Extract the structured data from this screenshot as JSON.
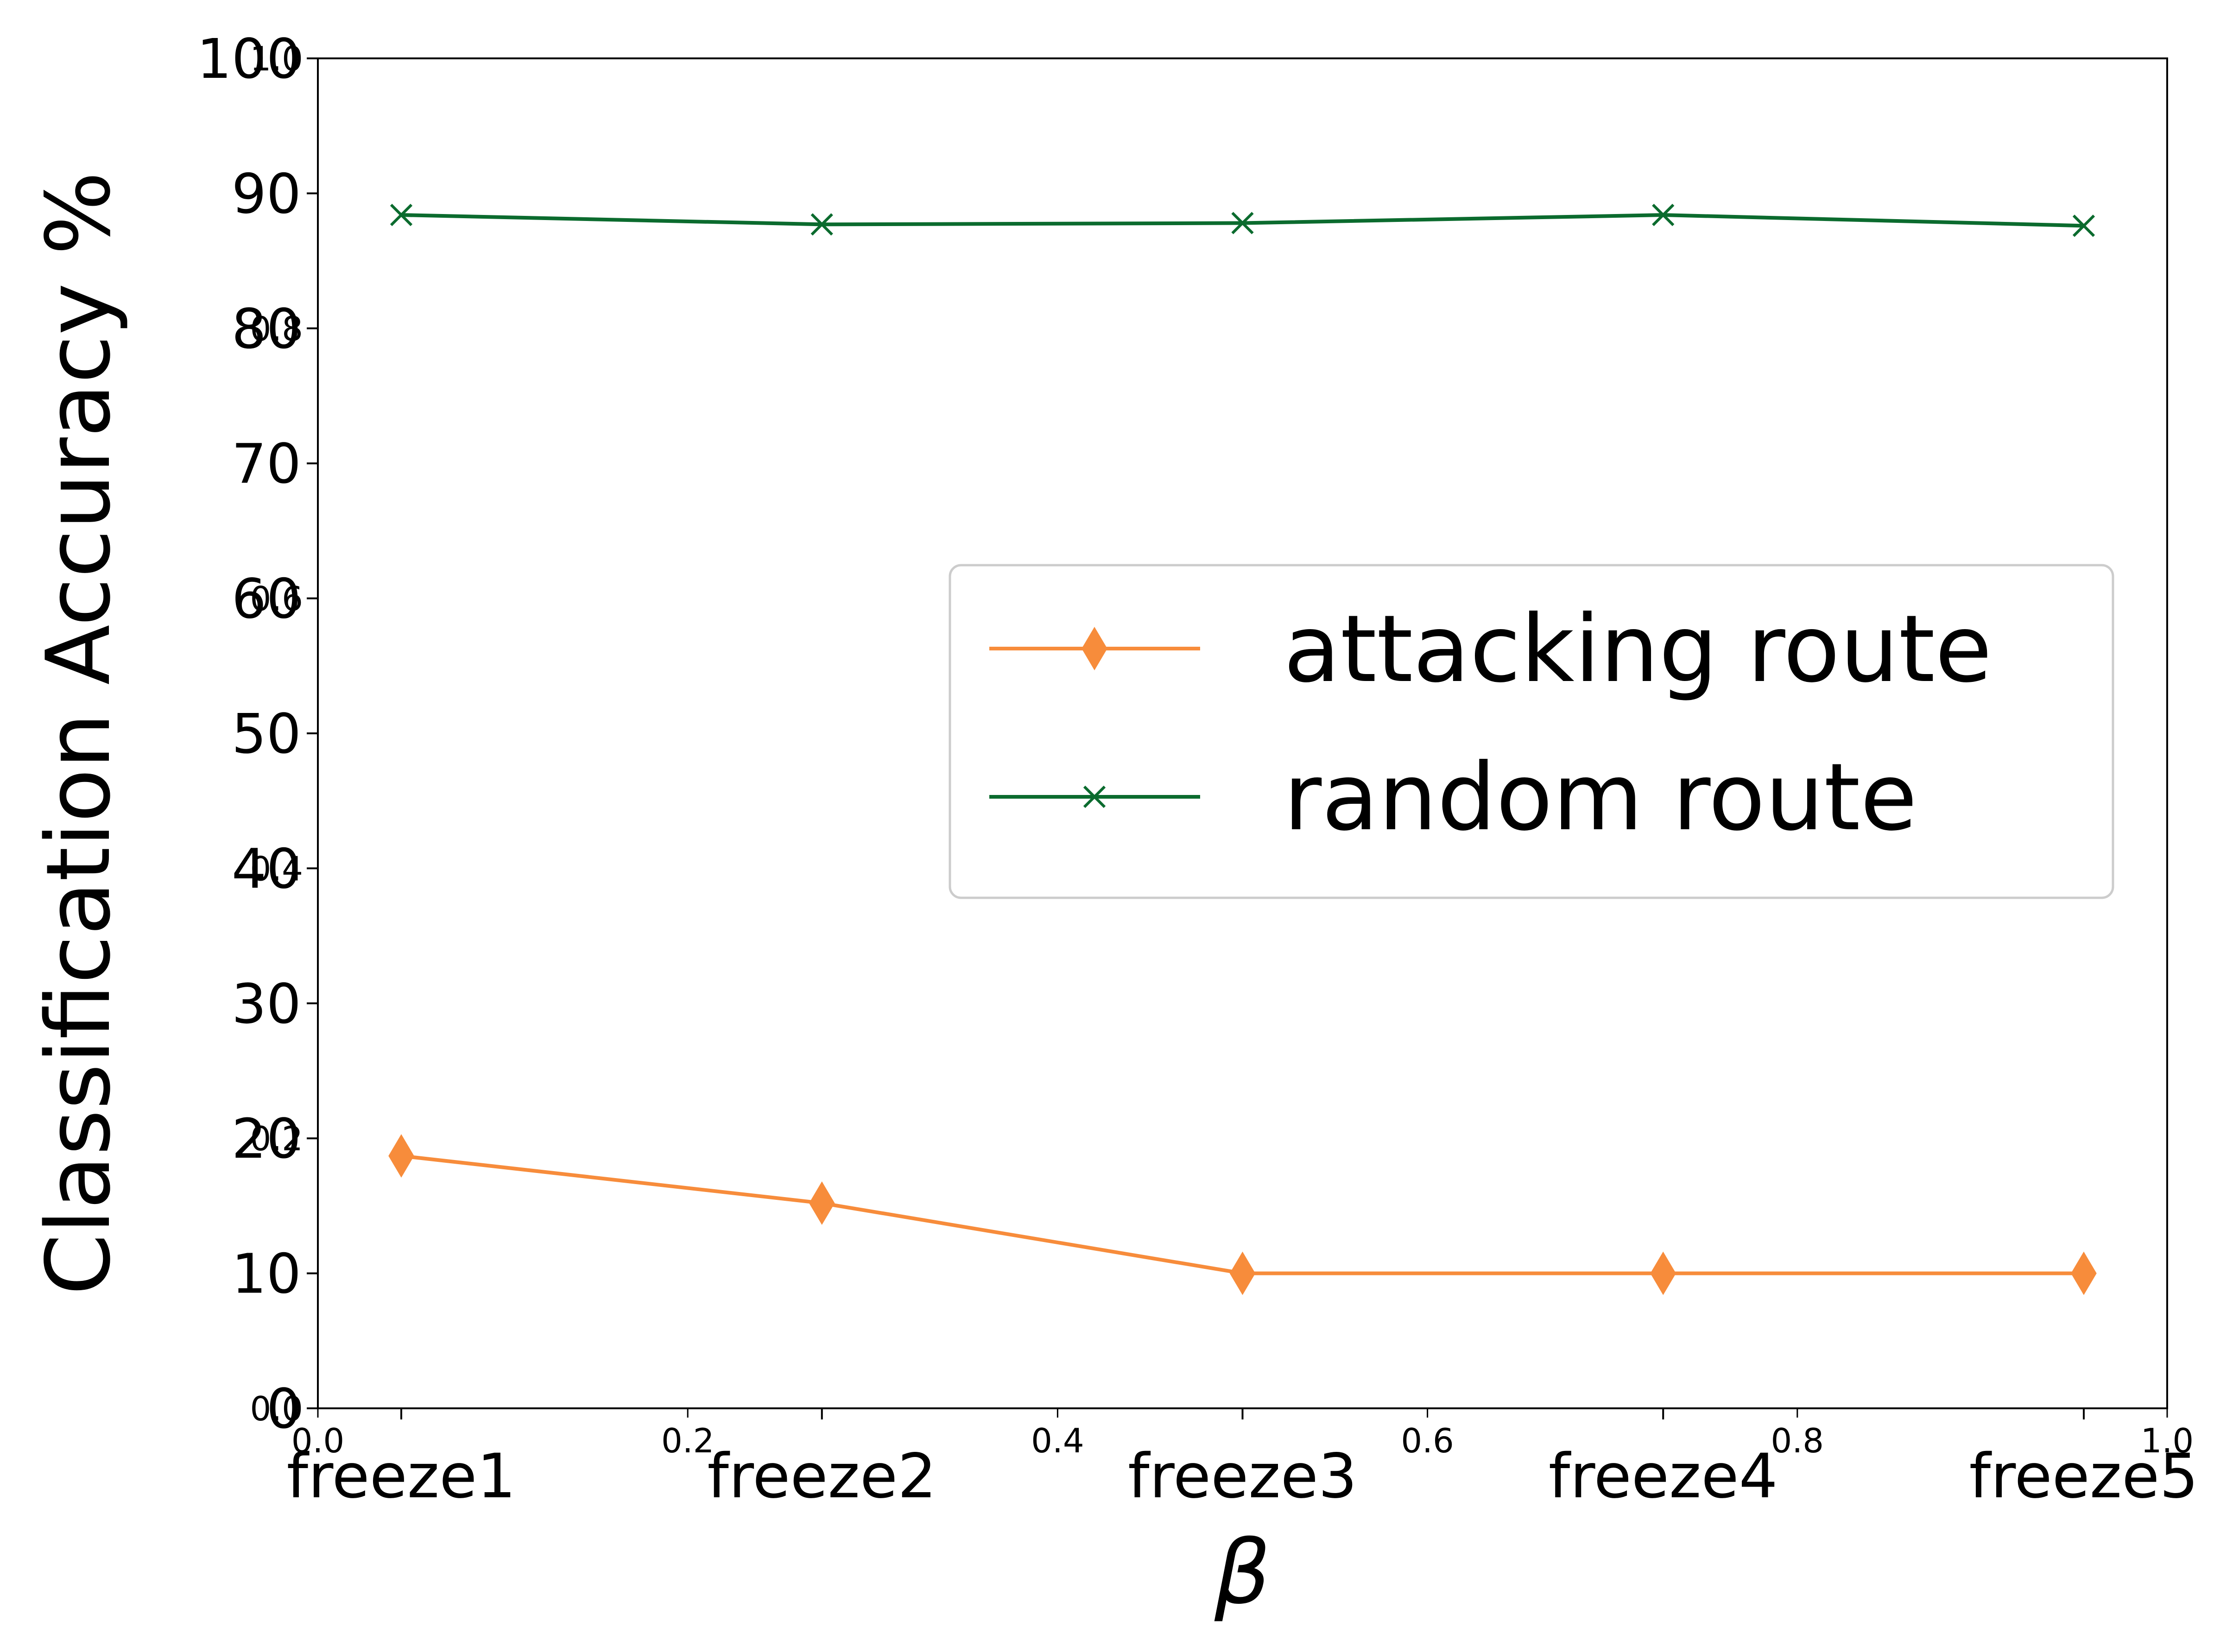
{
  "chart_data": {
    "type": "line",
    "xlabel": "β",
    "ylabel": "Classification Accuracy %",
    "categories": [
      "freeze1",
      "freeze2",
      "freeze3",
      "freeze4",
      "freeze5"
    ],
    "ylim": [
      0,
      100
    ],
    "yticks": [
      0,
      10,
      20,
      30,
      40,
      50,
      60,
      70,
      80,
      90,
      100
    ],
    "secondary_axis_ticks": {
      "x": [
        "0.0",
        "0.2",
        "0.4",
        "0.6",
        "0.8",
        "1.0"
      ],
      "y": [
        "0.0",
        "0.2",
        "0.4",
        "0.6",
        "0.8",
        "1.0"
      ]
    },
    "grid": false,
    "legend_position": "center-right",
    "series": [
      {
        "name": "attacking route",
        "color": "#f78c3b",
        "marker": "thin-diamond",
        "values": [
          18.7,
          15.2,
          10.0,
          10.0,
          10.0
        ]
      },
      {
        "name": "random route",
        "color": "#0b6b2e",
        "marker": "x",
        "values": [
          88.4,
          87.7,
          87.8,
          88.4,
          87.6
        ]
      }
    ]
  }
}
